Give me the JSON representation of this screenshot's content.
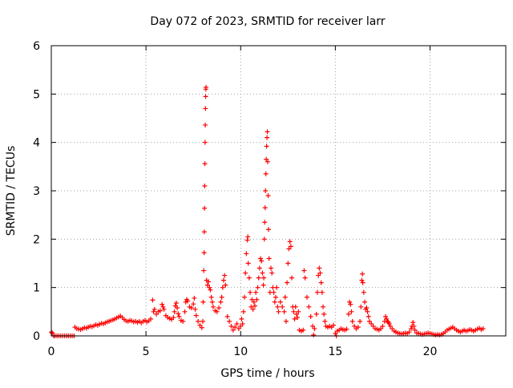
{
  "chart_data": {
    "type": "scatter",
    "title": "Day 072 of 2023, SRMTID for receiver larr",
    "xlabel": "GPS time / hours",
    "ylabel": "SRMTID / TECUs",
    "xlim": [
      0,
      24
    ],
    "ylim": [
      0,
      6
    ],
    "xticks": [
      0,
      5,
      10,
      15,
      20
    ],
    "yticks": [
      0,
      1,
      2,
      3,
      4,
      5,
      6
    ],
    "grid": true,
    "marker": "+",
    "color": "#ff0000",
    "series": [
      {
        "name": "SRMTID",
        "points": [
          [
            0.0,
            0.08
          ],
          [
            0.05,
            0.06
          ],
          [
            0.12,
            0.0
          ],
          [
            0.2,
            0.0
          ],
          [
            0.3,
            0.0
          ],
          [
            0.4,
            0.0
          ],
          [
            0.5,
            0.0
          ],
          [
            0.6,
            0.0
          ],
          [
            0.7,
            0.0
          ],
          [
            0.8,
            0.0
          ],
          [
            0.9,
            0.0
          ],
          [
            1.0,
            0.0
          ],
          [
            1.1,
            0.0
          ],
          [
            1.2,
            0.0
          ],
          [
            1.25,
            0.18
          ],
          [
            1.35,
            0.15
          ],
          [
            1.45,
            0.14
          ],
          [
            1.55,
            0.13
          ],
          [
            1.65,
            0.15
          ],
          [
            1.75,
            0.17
          ],
          [
            1.85,
            0.16
          ],
          [
            1.95,
            0.18
          ],
          [
            2.05,
            0.2
          ],
          [
            2.15,
            0.19
          ],
          [
            2.25,
            0.21
          ],
          [
            2.35,
            0.23
          ],
          [
            2.45,
            0.22
          ],
          [
            2.55,
            0.24
          ],
          [
            2.65,
            0.26
          ],
          [
            2.75,
            0.25
          ],
          [
            2.85,
            0.27
          ],
          [
            2.95,
            0.29
          ],
          [
            3.05,
            0.3
          ],
          [
            3.15,
            0.32
          ],
          [
            3.25,
            0.33
          ],
          [
            3.35,
            0.35
          ],
          [
            3.45,
            0.37
          ],
          [
            3.55,
            0.39
          ],
          [
            3.65,
            0.41
          ],
          [
            3.75,
            0.38
          ],
          [
            3.85,
            0.34
          ],
          [
            3.95,
            0.31
          ],
          [
            4.05,
            0.3
          ],
          [
            4.15,
            0.32
          ],
          [
            4.25,
            0.31
          ],
          [
            4.35,
            0.29
          ],
          [
            4.45,
            0.3
          ],
          [
            4.55,
            0.28
          ],
          [
            4.65,
            0.3
          ],
          [
            4.75,
            0.27
          ],
          [
            4.85,
            0.3
          ],
          [
            4.95,
            0.32
          ],
          [
            5.05,
            0.29
          ],
          [
            5.15,
            0.31
          ],
          [
            5.25,
            0.35
          ],
          [
            5.35,
            0.74
          ],
          [
            5.4,
            0.5
          ],
          [
            5.45,
            0.55
          ],
          [
            5.55,
            0.45
          ],
          [
            5.65,
            0.5
          ],
          [
            5.75,
            0.52
          ],
          [
            5.85,
            0.65
          ],
          [
            5.9,
            0.6
          ],
          [
            5.95,
            0.55
          ],
          [
            6.05,
            0.42
          ],
          [
            6.15,
            0.38
          ],
          [
            6.25,
            0.36
          ],
          [
            6.35,
            0.34
          ],
          [
            6.45,
            0.38
          ],
          [
            6.5,
            0.5
          ],
          [
            6.55,
            0.62
          ],
          [
            6.6,
            0.68
          ],
          [
            6.65,
            0.58
          ],
          [
            6.7,
            0.46
          ],
          [
            6.75,
            0.4
          ],
          [
            6.85,
            0.32
          ],
          [
            6.95,
            0.3
          ],
          [
            7.05,
            0.5
          ],
          [
            7.1,
            0.7
          ],
          [
            7.15,
            0.75
          ],
          [
            7.2,
            0.72
          ],
          [
            7.3,
            0.6
          ],
          [
            7.4,
            0.58
          ],
          [
            7.5,
            0.66
          ],
          [
            7.55,
            0.78
          ],
          [
            7.6,
            0.55
          ],
          [
            7.65,
            0.42
          ],
          [
            7.75,
            0.3
          ],
          [
            7.85,
            0.22
          ],
          [
            7.95,
            0.17
          ],
          [
            8.0,
            0.3
          ],
          [
            8.02,
            0.7
          ],
          [
            8.05,
            1.35
          ],
          [
            8.07,
            1.72
          ],
          [
            8.08,
            2.15
          ],
          [
            8.09,
            2.64
          ],
          [
            8.1,
            3.1
          ],
          [
            8.11,
            3.56
          ],
          [
            8.12,
            4.0
          ],
          [
            8.13,
            4.36
          ],
          [
            8.14,
            4.7
          ],
          [
            8.15,
            4.95
          ],
          [
            8.16,
            5.1
          ],
          [
            8.17,
            5.14
          ],
          [
            8.2,
            1.15
          ],
          [
            8.25,
            1.05
          ],
          [
            8.3,
            1.12
          ],
          [
            8.35,
            1.0
          ],
          [
            8.4,
            0.95
          ],
          [
            8.45,
            0.8
          ],
          [
            8.5,
            0.7
          ],
          [
            8.55,
            0.6
          ],
          [
            8.65,
            0.52
          ],
          [
            8.75,
            0.5
          ],
          [
            8.85,
            0.58
          ],
          [
            8.95,
            0.7
          ],
          [
            9.0,
            0.8
          ],
          [
            9.05,
            1.0
          ],
          [
            9.1,
            1.15
          ],
          [
            9.15,
            1.25
          ],
          [
            9.2,
            1.05
          ],
          [
            9.3,
            0.4
          ],
          [
            9.4,
            0.3
          ],
          [
            9.5,
            0.2
          ],
          [
            9.6,
            0.12
          ],
          [
            9.7,
            0.18
          ],
          [
            9.8,
            0.25
          ],
          [
            9.9,
            0.15
          ],
          [
            10.0,
            0.2
          ],
          [
            10.05,
            0.35
          ],
          [
            10.1,
            0.25
          ],
          [
            10.15,
            0.5
          ],
          [
            10.2,
            0.8
          ],
          [
            10.25,
            1.3
          ],
          [
            10.3,
            1.7
          ],
          [
            10.35,
            1.98
          ],
          [
            10.38,
            2.05
          ],
          [
            10.4,
            1.5
          ],
          [
            10.45,
            1.2
          ],
          [
            10.5,
            0.9
          ],
          [
            10.55,
            0.6
          ],
          [
            10.6,
            0.75
          ],
          [
            10.65,
            0.55
          ],
          [
            10.7,
            0.7
          ],
          [
            10.75,
            0.62
          ],
          [
            10.8,
            0.9
          ],
          [
            10.85,
            0.75
          ],
          [
            10.9,
            1.0
          ],
          [
            10.95,
            1.2
          ],
          [
            11.0,
            1.4
          ],
          [
            11.05,
            1.6
          ],
          [
            11.1,
            1.55
          ],
          [
            11.15,
            1.3
          ],
          [
            11.2,
            1.05
          ],
          [
            11.22,
            1.2
          ],
          [
            11.25,
            2.0
          ],
          [
            11.27,
            2.35
          ],
          [
            11.29,
            2.65
          ],
          [
            11.31,
            3.0
          ],
          [
            11.33,
            3.35
          ],
          [
            11.35,
            3.65
          ],
          [
            11.37,
            3.92
          ],
          [
            11.39,
            4.1
          ],
          [
            11.41,
            4.22
          ],
          [
            11.43,
            3.6
          ],
          [
            11.45,
            2.9
          ],
          [
            11.47,
            2.2
          ],
          [
            11.5,
            1.6
          ],
          [
            11.55,
            0.9
          ],
          [
            11.6,
            1.4
          ],
          [
            11.65,
            1.3
          ],
          [
            11.7,
            1.0
          ],
          [
            11.75,
            0.9
          ],
          [
            11.8,
            0.7
          ],
          [
            11.85,
            0.8
          ],
          [
            11.9,
            1.0
          ],
          [
            11.95,
            0.6
          ],
          [
            12.0,
            0.5
          ],
          [
            12.1,
            0.7
          ],
          [
            12.2,
            0.6
          ],
          [
            12.3,
            0.5
          ],
          [
            12.35,
            0.8
          ],
          [
            12.4,
            0.3
          ],
          [
            12.45,
            1.1
          ],
          [
            12.5,
            1.5
          ],
          [
            12.55,
            1.8
          ],
          [
            12.6,
            1.95
          ],
          [
            12.65,
            1.85
          ],
          [
            12.7,
            1.2
          ],
          [
            12.75,
            0.6
          ],
          [
            12.8,
            0.5
          ],
          [
            12.85,
            0.35
          ],
          [
            12.9,
            0.6
          ],
          [
            12.95,
            0.45
          ],
          [
            13.0,
            0.38
          ],
          [
            13.05,
            0.5
          ],
          [
            13.1,
            0.12
          ],
          [
            13.2,
            0.1
          ],
          [
            13.3,
            0.12
          ],
          [
            13.35,
            1.35
          ],
          [
            13.4,
            1.2
          ],
          [
            13.5,
            0.8
          ],
          [
            13.6,
            0.6
          ],
          [
            13.7,
            0.4
          ],
          [
            13.8,
            0.2
          ],
          [
            13.85,
            0.02
          ],
          [
            13.9,
            0.15
          ],
          [
            14.0,
            0.45
          ],
          [
            14.05,
            0.9
          ],
          [
            14.1,
            1.25
          ],
          [
            14.15,
            1.4
          ],
          [
            14.2,
            1.3
          ],
          [
            14.25,
            1.1
          ],
          [
            14.3,
            0.9
          ],
          [
            14.35,
            0.6
          ],
          [
            14.4,
            0.45
          ],
          [
            14.45,
            0.3
          ],
          [
            14.5,
            0.2
          ],
          [
            14.6,
            0.18
          ],
          [
            14.7,
            0.2
          ],
          [
            14.8,
            0.18
          ],
          [
            14.9,
            0.22
          ],
          [
            15.0,
            0.05
          ],
          [
            15.05,
            0.0
          ],
          [
            15.1,
            0.1
          ],
          [
            15.2,
            0.12
          ],
          [
            15.3,
            0.15
          ],
          [
            15.4,
            0.13
          ],
          [
            15.5,
            0.12
          ],
          [
            15.6,
            0.14
          ],
          [
            15.7,
            0.45
          ],
          [
            15.75,
            0.7
          ],
          [
            15.8,
            0.65
          ],
          [
            15.85,
            0.5
          ],
          [
            15.9,
            0.3
          ],
          [
            16.0,
            0.2
          ],
          [
            16.1,
            0.15
          ],
          [
            16.2,
            0.18
          ],
          [
            16.3,
            0.3
          ],
          [
            16.35,
            0.6
          ],
          [
            16.4,
            1.15
          ],
          [
            16.43,
            1.28
          ],
          [
            16.45,
            1.1
          ],
          [
            16.5,
            0.9
          ],
          [
            16.55,
            0.7
          ],
          [
            16.6,
            0.55
          ],
          [
            16.65,
            0.58
          ],
          [
            16.7,
            0.5
          ],
          [
            16.75,
            0.4
          ],
          [
            16.8,
            0.3
          ],
          [
            16.9,
            0.25
          ],
          [
            17.0,
            0.2
          ],
          [
            17.1,
            0.15
          ],
          [
            17.2,
            0.14
          ],
          [
            17.3,
            0.12
          ],
          [
            17.4,
            0.15
          ],
          [
            17.5,
            0.2
          ],
          [
            17.6,
            0.3
          ],
          [
            17.65,
            0.4
          ],
          [
            17.7,
            0.35
          ],
          [
            17.75,
            0.3
          ],
          [
            17.8,
            0.28
          ],
          [
            17.85,
            0.25
          ],
          [
            17.9,
            0.2
          ],
          [
            18.0,
            0.15
          ],
          [
            18.1,
            0.1
          ],
          [
            18.2,
            0.08
          ],
          [
            18.3,
            0.06
          ],
          [
            18.4,
            0.05
          ],
          [
            18.5,
            0.04
          ],
          [
            18.6,
            0.05
          ],
          [
            18.7,
            0.06
          ],
          [
            18.8,
            0.05
          ],
          [
            18.9,
            0.08
          ],
          [
            19.0,
            0.15
          ],
          [
            19.05,
            0.2
          ],
          [
            19.1,
            0.28
          ],
          [
            19.15,
            0.2
          ],
          [
            19.2,
            0.12
          ],
          [
            19.3,
            0.06
          ],
          [
            19.4,
            0.05
          ],
          [
            19.5,
            0.04
          ],
          [
            19.6,
            0.03
          ],
          [
            19.7,
            0.04
          ],
          [
            19.8,
            0.05
          ],
          [
            19.9,
            0.06
          ],
          [
            20.0,
            0.05
          ],
          [
            20.1,
            0.04
          ],
          [
            20.2,
            0.03
          ],
          [
            20.3,
            0.02
          ],
          [
            20.4,
            0.03
          ],
          [
            20.5,
            0.02
          ],
          [
            20.6,
            0.03
          ],
          [
            20.7,
            0.05
          ],
          [
            20.8,
            0.08
          ],
          [
            20.9,
            0.12
          ],
          [
            21.0,
            0.14
          ],
          [
            21.1,
            0.16
          ],
          [
            21.2,
            0.18
          ],
          [
            21.3,
            0.15
          ],
          [
            21.4,
            0.12
          ],
          [
            21.5,
            0.1
          ],
          [
            21.6,
            0.08
          ],
          [
            21.7,
            0.1
          ],
          [
            21.8,
            0.12
          ],
          [
            21.9,
            0.1
          ],
          [
            22.0,
            0.11
          ],
          [
            22.1,
            0.13
          ],
          [
            22.2,
            0.12
          ],
          [
            22.3,
            0.1
          ],
          [
            22.4,
            0.12
          ],
          [
            22.5,
            0.14
          ],
          [
            22.6,
            0.16
          ],
          [
            22.7,
            0.13
          ],
          [
            22.8,
            0.15
          ]
        ]
      }
    ]
  }
}
